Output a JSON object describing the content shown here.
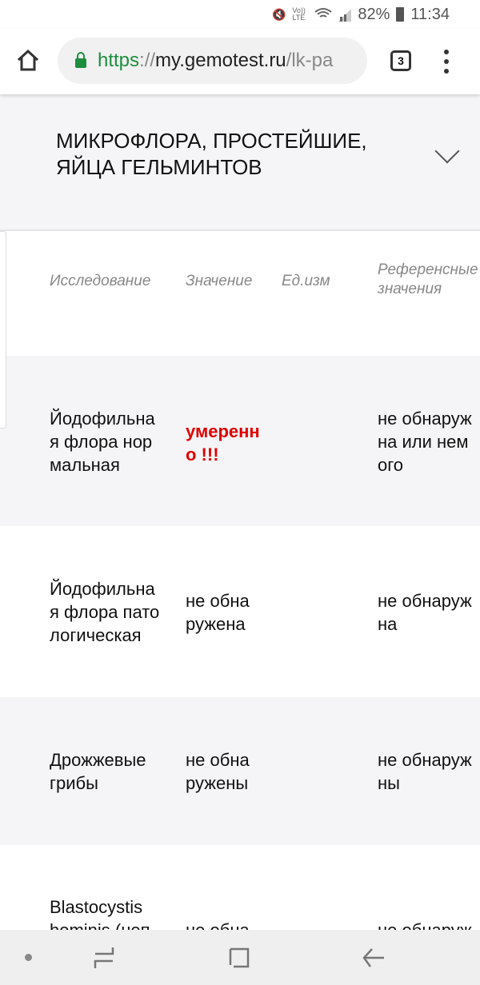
{
  "status_bar": {
    "battery": "82%",
    "time": "11:34",
    "icons": [
      "mute-icon",
      "volte-icon",
      "wifi-icon",
      "signal-icon",
      "battery-icon"
    ],
    "volte": "Vo)) LTE"
  },
  "browser": {
    "url_scheme": "https",
    "url_sep": "://",
    "url_host": "my.gemotest.ru",
    "url_path": "/lk-pa",
    "tab_count": "3"
  },
  "section": {
    "title": "МИКРОФЛОРА, ПРОСТЕЙШИЕ,\nЯЙЦА ГЕЛЬМИНТОВ"
  },
  "table": {
    "headers": [
      "Исследование",
      "Значение",
      "Ед.изм",
      "Референсные\nзначения"
    ],
    "rows": [
      {
        "name": "Йодофильна\nя флора нор\nмальная",
        "value": "умеренн\nо !!!",
        "unit": "",
        "ref": "не обнаруж\nна или нем\nого",
        "abnormal": true
      },
      {
        "name": "Йодофильна\nя флора пато\nлогическая",
        "value": "не обна\nружена",
        "unit": "",
        "ref": "не обнаруж\nна",
        "abnormal": false
      },
      {
        "name": "Дрожжевые\nгрибы",
        "value": "не обна\nружены",
        "unit": "",
        "ref": "не обнаруж\nны",
        "abnormal": false
      },
      {
        "name": "Blastocystis\nhominis (неп",
        "value": "не обна",
        "unit": "",
        "ref": "не обнаруж",
        "abnormal": false
      }
    ]
  },
  "colors": {
    "accent_green": "#1e8e3e",
    "abnormal_red": "#e00000",
    "row_alt": "#f5f5f7"
  }
}
